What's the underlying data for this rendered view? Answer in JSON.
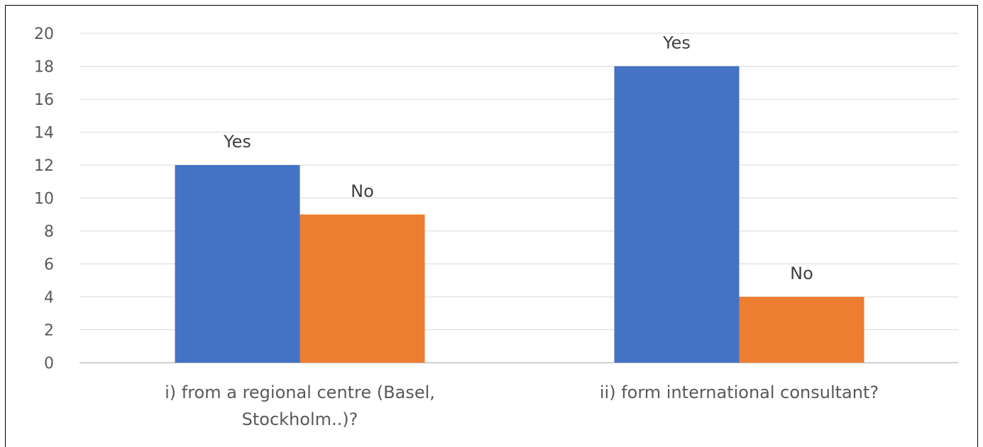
{
  "chart_data": {
    "type": "bar",
    "title": "",
    "xlabel": "",
    "ylabel": "",
    "ylim": [
      0,
      20
    ],
    "y_ticks": [
      "0",
      "2",
      "4",
      "6",
      "8",
      "10",
      "12",
      "14",
      "16",
      "18",
      "20"
    ],
    "grid": true,
    "legend": "none",
    "categories": [
      [
        "i) from a regional centre (Basel,",
        "Stockholm..)?"
      ],
      [
        "ii) form international consultant?"
      ]
    ],
    "series": [
      {
        "values": [
          12,
          18
        ],
        "labels": [
          "Yes",
          "Yes"
        ],
        "color": "#4472C4"
      },
      {
        "values": [
          9,
          4
        ],
        "labels": [
          "No",
          "No"
        ],
        "color": "#ED7D31"
      }
    ]
  }
}
